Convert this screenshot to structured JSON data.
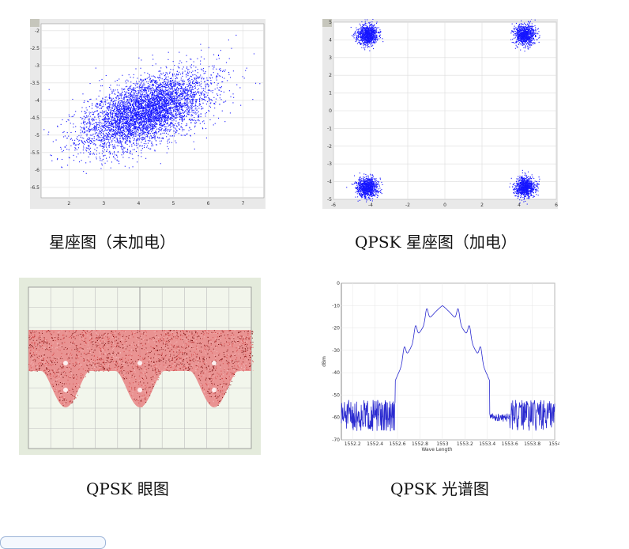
{
  "captions": {
    "c1": "星座图（未加电）",
    "c2": "QPSK 星座图（加电）",
    "c3": "QPSK  眼图",
    "c4": "QPSK 光谱图"
  },
  "colors": {
    "scatter": "#1515ff",
    "eye": "#c83030",
    "grid": "#dcdcdc",
    "spectrum": "#2b2bd0"
  },
  "chart_data": [
    {
      "type": "scatter",
      "title": "星座图（未加电）",
      "xlabel": "",
      "ylabel": "",
      "xlim": [
        1.2,
        7.6
      ],
      "ylim": [
        -6.8,
        -1.8
      ],
      "x_ticks": [
        2,
        3,
        4,
        5,
        6,
        7
      ],
      "y_ticks": [
        -2,
        -2.5,
        -3,
        -3.5,
        -4,
        -4.5,
        -5,
        -5.5,
        -6,
        -6.5
      ],
      "series": [
        {
          "center": [
            4.2,
            -4.3
          ],
          "spread_x": 0.9,
          "spread_y": 0.55,
          "correlation": 0.55
        }
      ],
      "grid": true
    },
    {
      "type": "scatter",
      "title": "QPSK 星座图（加电）",
      "xlabel": "",
      "ylabel": "",
      "xlim": [
        -6,
        6
      ],
      "ylim": [
        -5,
        5
      ],
      "x_ticks": [
        -6,
        -4,
        -2,
        0,
        2,
        4,
        6
      ],
      "y_ticks": [
        5,
        4,
        3,
        2,
        1,
        0,
        -1,
        -2,
        -3,
        -4,
        -5
      ],
      "series": [
        {
          "clusters": [
            [
              -4.2,
              4.3
            ],
            [
              4.3,
              4.3
            ],
            [
              -4.2,
              -4.3
            ],
            [
              4.3,
              -4.3
            ]
          ],
          "spread": 0.28
        }
      ],
      "grid": true
    },
    {
      "type": "line",
      "title": "QPSK  眼图",
      "xlabel": "",
      "ylabel": "",
      "grid": true,
      "series": [
        {
          "pattern": "eye",
          "periods": 3
        }
      ]
    },
    {
      "type": "line",
      "title": "QPSK 光谱图",
      "xlabel": "Wave Length",
      "ylabel": "dBm",
      "xlim": [
        1552.1,
        1554
      ],
      "ylim": [
        -70,
        0
      ],
      "x_ticks": [
        1552.2,
        1552.4,
        1552.6,
        1552.8,
        1553,
        1553.2,
        1553.4,
        1553.6,
        1553.8,
        1554
      ],
      "y_ticks": [
        0,
        -10,
        -20,
        -30,
        -40,
        -50,
        -60,
        -70
      ],
      "series": [
        {
          "peak_x": 1553,
          "peak_y": -10,
          "side_lobes": [
            [
              1552.86,
              -36
            ],
            [
              1553.14,
              -36
            ],
            [
              1552.76,
              -42
            ],
            [
              1553.24,
              -42
            ],
            [
              1552.66,
              -48
            ],
            [
              1553.34,
              -48
            ]
          ],
          "noise_floor": -62
        }
      ],
      "grid": true
    }
  ]
}
